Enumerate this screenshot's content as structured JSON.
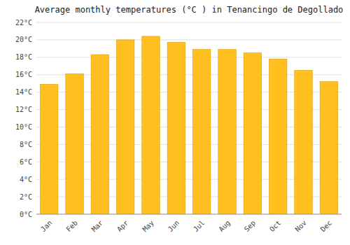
{
  "chart_data": {
    "type": "bar",
    "title": "Average monthly temperatures (°C ) in Tenancingo de Degollado",
    "categories": [
      "Jan",
      "Feb",
      "Mar",
      "Apr",
      "May",
      "Jun",
      "Jul",
      "Aug",
      "Sep",
      "Oct",
      "Nov",
      "Dec"
    ],
    "values": [
      14.9,
      16.1,
      18.3,
      20.0,
      20.4,
      19.7,
      18.9,
      18.9,
      18.5,
      17.8,
      16.5,
      15.2
    ],
    "color": "#FFC020",
    "ylim": [
      0,
      22
    ],
    "yticks": [
      {
        "value": 0,
        "label": "0°C"
      },
      {
        "value": 2,
        "label": "2°C"
      },
      {
        "value": 4,
        "label": "4°C"
      },
      {
        "value": 6,
        "label": "6°C"
      },
      {
        "value": 8,
        "label": "8°C"
      },
      {
        "value": 10,
        "label": "10°C"
      },
      {
        "value": 12,
        "label": "12°C"
      },
      {
        "value": 14,
        "label": "14°C"
      },
      {
        "value": 16,
        "label": "16°C"
      },
      {
        "value": 18,
        "label": "18°C"
      },
      {
        "value": 20,
        "label": "20°C"
      },
      {
        "value": 22,
        "label": "22°C"
      }
    ],
    "grid": true
  }
}
